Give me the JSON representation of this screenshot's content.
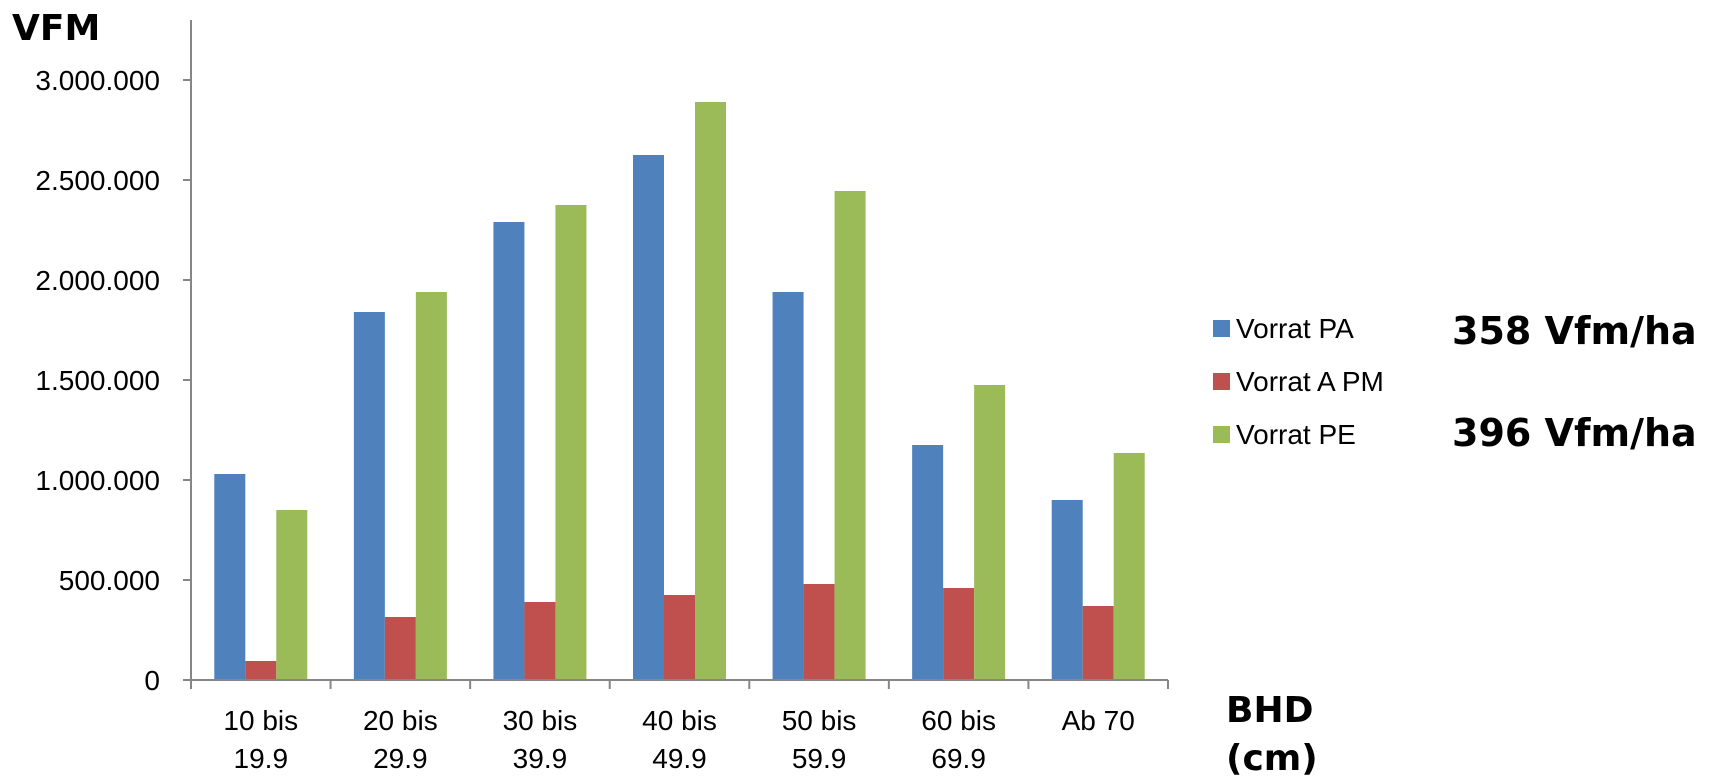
{
  "chart_data": {
    "type": "bar",
    "title": "",
    "ylabel": "VFM",
    "xlabel_lines": [
      "BHD",
      "(cm)"
    ],
    "ylim": [
      0,
      3300000
    ],
    "yticks": [
      0,
      500000,
      1000000,
      1500000,
      2000000,
      2500000,
      3000000
    ],
    "ytick_labels": [
      "0",
      "500.000",
      "1.000.000",
      "1.500.000",
      "2.000.000",
      "2.500.000",
      "3.000.000"
    ],
    "categories": [
      [
        "10 bis",
        "19.9"
      ],
      [
        "20 bis",
        "29.9"
      ],
      [
        "30 bis",
        "39.9"
      ],
      [
        "40 bis",
        "49.9"
      ],
      [
        "50 bis",
        "59.9"
      ],
      [
        "60 bis",
        "69.9"
      ],
      [
        "Ab 70"
      ]
    ],
    "series": [
      {
        "name": "Vorrat PA",
        "color": "#4f81bd",
        "values": [
          1030000,
          1840000,
          2290000,
          2625000,
          1940000,
          1175000,
          900000
        ]
      },
      {
        "name": "Vorrat A PM",
        "color": "#c0504d",
        "values": [
          95000,
          315000,
          390000,
          425000,
          480000,
          460000,
          370000
        ]
      },
      {
        "name": "Vorrat PE",
        "color": "#9bbb59",
        "values": [
          850000,
          1940000,
          2375000,
          2890000,
          2445000,
          1475000,
          1135000
        ]
      }
    ],
    "grid": false,
    "legend_position": "right",
    "annotations": [
      "358 Vfm/ha",
      "396 Vfm/ha"
    ]
  }
}
